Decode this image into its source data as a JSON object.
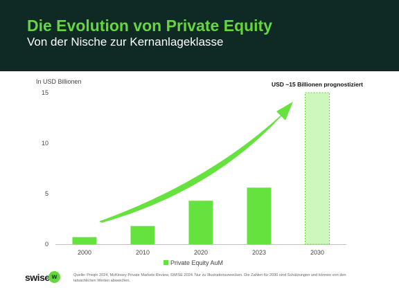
{
  "header": {
    "title": "Die Evolution von Private Equity",
    "subtitle": "Von der Nische zur Kernanlageklasse"
  },
  "chart_data": {
    "type": "bar",
    "ylabel": "In USD Billionen",
    "categories": [
      "2000",
      "2010",
      "2020",
      "2023",
      "2030"
    ],
    "series": [
      {
        "name": "Private Equity AuM",
        "values": [
          0.7,
          1.8,
          4.3,
          5.6,
          15
        ]
      }
    ],
    "forecast_index": 4,
    "ylim": [
      0,
      15
    ],
    "yticks": [
      0,
      5,
      10,
      15
    ],
    "annotation": "USD ~15 Billionen prognostiziert",
    "legend_position": "bottom",
    "grid": false,
    "colors": {
      "bar": "#66e23e",
      "forecast": "#cdf7bd",
      "forecast_border": "#66d63e",
      "arrow": "#66e23e"
    }
  },
  "footer": {
    "logo_text": "swise",
    "logo_badge": "w",
    "source": "Quelle: Preqin 2024, McKinsey Private Markets Review, SWISE 2024. Nur zu Illustrationszwecken. Die Zahlen für 2030 sind Schätzungen und können von den tatsächlichen Werten abweichen."
  }
}
